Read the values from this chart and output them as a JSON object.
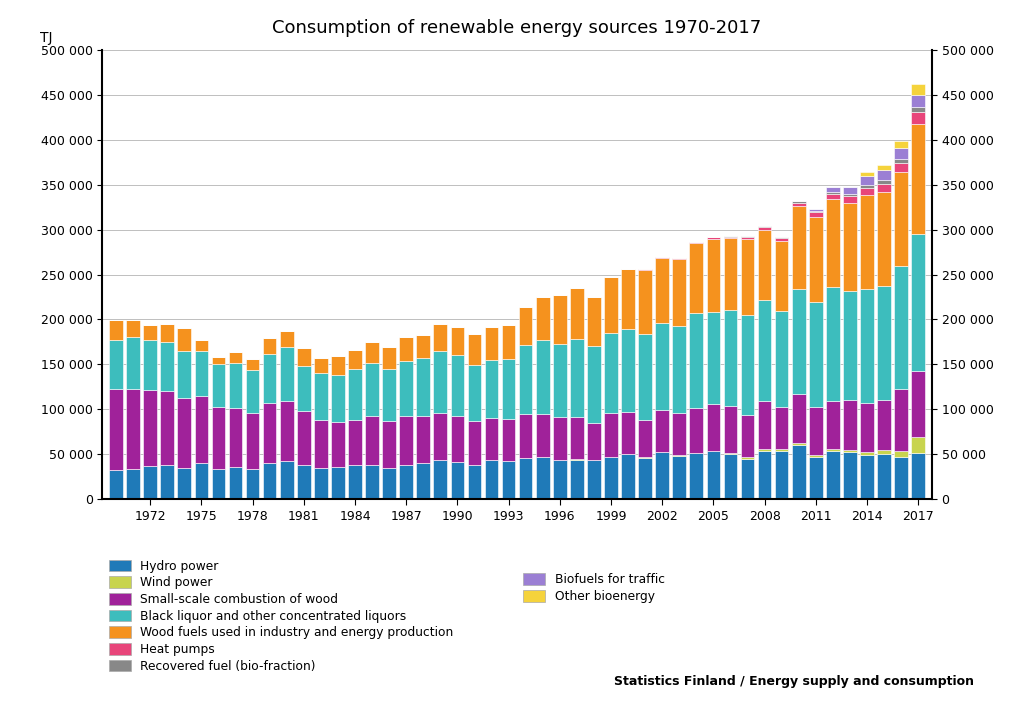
{
  "title": "Consumption of renewable energy sources 1970-2017",
  "ylabel_left": "TJ",
  "ylim": [
    0,
    500000
  ],
  "yticks": [
    0,
    50000,
    100000,
    150000,
    200000,
    250000,
    300000,
    350000,
    400000,
    450000,
    500000
  ],
  "years": [
    1970,
    1971,
    1972,
    1973,
    1974,
    1975,
    1976,
    1977,
    1978,
    1979,
    1980,
    1981,
    1982,
    1983,
    1984,
    1985,
    1986,
    1987,
    1988,
    1989,
    1990,
    1991,
    1992,
    1993,
    1994,
    1995,
    1996,
    1997,
    1998,
    1999,
    2000,
    2001,
    2002,
    2003,
    2004,
    2005,
    2006,
    2007,
    2008,
    2009,
    2010,
    2011,
    2012,
    2013,
    2014,
    2015,
    2016,
    2017
  ],
  "series_order": [
    "Hydro power",
    "Wind power",
    "Small-scale combustion of wood",
    "Black liquor and other concentrated liquors",
    "Wood fuels used in industry and energy production",
    "Heat pumps",
    "Recovered fuel (bio-fraction)",
    "Biofuels for traffic",
    "Other bioenergy"
  ],
  "series": {
    "Hydro power": {
      "color": "#1f7ab8",
      "values": [
        32000,
        33000,
        37000,
        38000,
        35000,
        40000,
        34000,
        36000,
        34000,
        40000,
        42000,
        38000,
        35000,
        36000,
        38000,
        38000,
        35000,
        38000,
        40000,
        43000,
        41000,
        38000,
        43000,
        42000,
        46000,
        47000,
        44000,
        44000,
        43000,
        47000,
        50000,
        46000,
        52000,
        48000,
        51000,
        53000,
        50000,
        45000,
        54000,
        54000,
        60000,
        47000,
        53000,
        52000,
        49000,
        50000,
        47000,
        51000
      ]
    },
    "Wind power": {
      "color": "#c8d44e",
      "values": [
        0,
        0,
        0,
        0,
        0,
        0,
        0,
        0,
        0,
        0,
        0,
        0,
        0,
        0,
        0,
        0,
        0,
        0,
        0,
        0,
        0,
        0,
        0,
        0,
        0,
        0,
        0,
        100,
        100,
        200,
        300,
        400,
        500,
        600,
        800,
        1000,
        1200,
        1400,
        1500,
        1600,
        1900,
        2200,
        2500,
        2900,
        3500,
        5000,
        7000,
        18000
      ]
    },
    "Small-scale combustion of wood": {
      "color": "#a0229a",
      "values": [
        90000,
        90000,
        84000,
        82000,
        78000,
        75000,
        68000,
        65000,
        62000,
        67000,
        67000,
        60000,
        53000,
        50000,
        50000,
        55000,
        52000,
        54000,
        53000,
        53000,
        52000,
        49000,
        47000,
        47000,
        49000,
        48000,
        47000,
        47000,
        42000,
        49000,
        47000,
        42000,
        47000,
        47000,
        50000,
        52000,
        52000,
        47000,
        54000,
        47000,
        55000,
        53000,
        54000,
        55000,
        54000,
        55000,
        68000,
        74000
      ]
    },
    "Black liquor and other concentrated liquors": {
      "color": "#3dbdbd",
      "values": [
        55000,
        57000,
        56000,
        55000,
        52000,
        50000,
        48000,
        50000,
        48000,
        55000,
        60000,
        50000,
        52000,
        52000,
        57000,
        59000,
        58000,
        62000,
        64000,
        69000,
        67000,
        62000,
        65000,
        67000,
        77000,
        82000,
        82000,
        87000,
        85000,
        89000,
        92000,
        95000,
        97000,
        97000,
        105000,
        102000,
        107000,
        112000,
        112000,
        107000,
        117000,
        117000,
        127000,
        122000,
        127000,
        127000,
        137000,
        152000
      ]
    },
    "Wood fuels used in industry and energy production": {
      "color": "#f5921e",
      "values": [
        22000,
        19000,
        17000,
        20000,
        26000,
        12000,
        8000,
        13000,
        12000,
        17000,
        18000,
        20000,
        17000,
        21000,
        21000,
        23000,
        24000,
        26000,
        26000,
        30000,
        32000,
        35000,
        37000,
        38000,
        42000,
        48000,
        54000,
        57000,
        55000,
        62000,
        67000,
        72000,
        72000,
        75000,
        78000,
        82000,
        80000,
        84000,
        78000,
        78000,
        92000,
        95000,
        97000,
        98000,
        105000,
        105000,
        105000,
        122000
      ]
    },
    "Heat pumps": {
      "color": "#e8457a",
      "values": [
        0,
        0,
        0,
        0,
        0,
        0,
        0,
        0,
        0,
        0,
        0,
        0,
        0,
        0,
        0,
        0,
        0,
        0,
        0,
        0,
        0,
        0,
        0,
        0,
        0,
        0,
        0,
        0,
        0,
        0,
        200,
        400,
        600,
        800,
        1000,
        1500,
        2000,
        2500,
        3000,
        3500,
        4000,
        5000,
        6000,
        7000,
        8000,
        9000,
        10000,
        14000
      ]
    },
    "Recovered fuel (bio-fraction)": {
      "color": "#888888",
      "values": [
        0,
        0,
        0,
        0,
        0,
        0,
        0,
        0,
        0,
        0,
        0,
        0,
        0,
        0,
        0,
        0,
        0,
        0,
        0,
        0,
        0,
        0,
        0,
        0,
        0,
        0,
        0,
        0,
        0,
        0,
        0,
        0,
        0,
        0,
        0,
        0,
        600,
        800,
        1000,
        1200,
        1500,
        2000,
        2500,
        3000,
        3500,
        4000,
        4500,
        5000
      ]
    },
    "Biofuels for traffic": {
      "color": "#9b7fd4",
      "values": [
        0,
        0,
        0,
        0,
        0,
        0,
        0,
        0,
        0,
        0,
        0,
        0,
        0,
        0,
        0,
        0,
        0,
        0,
        0,
        0,
        0,
        0,
        0,
        0,
        0,
        0,
        0,
        0,
        0,
        0,
        0,
        0,
        0,
        0,
        0,
        0,
        0,
        0,
        0,
        0,
        0,
        2000,
        5000,
        8000,
        10000,
        11000,
        12000,
        14000
      ]
    },
    "Other bioenergy": {
      "color": "#f5d33c",
      "values": [
        0,
        0,
        0,
        0,
        0,
        0,
        0,
        0,
        0,
        0,
        0,
        0,
        0,
        0,
        0,
        0,
        0,
        0,
        0,
        0,
        0,
        0,
        0,
        0,
        0,
        0,
        0,
        0,
        0,
        0,
        0,
        0,
        0,
        0,
        0,
        0,
        0,
        0,
        0,
        0,
        0,
        0,
        0,
        0,
        4000,
        6000,
        8000,
        12000
      ]
    }
  },
  "footnote": "Statistics Finland / Energy supply and consumption",
  "background_color": "#ffffff",
  "grid_color": "#bebebe"
}
